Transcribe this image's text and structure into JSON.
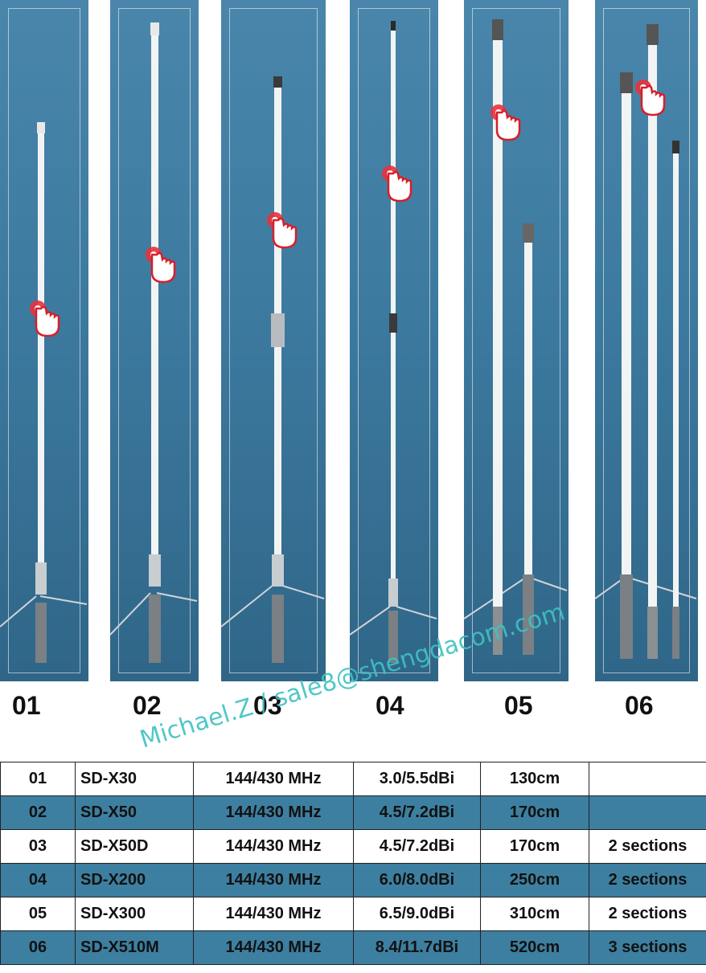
{
  "products": [
    {
      "no": "01",
      "model": "SD-X30",
      "freq": "144/430 MHz",
      "gain": "3.0/5.5dBi",
      "length": "130cm",
      "sections": ""
    },
    {
      "no": "02",
      "model": "SD-X50",
      "freq": "144/430 MHz",
      "gain": "4.5/7.2dBi",
      "length": "170cm",
      "sections": ""
    },
    {
      "no": "03",
      "model": "SD-X50D",
      "freq": "144/430 MHz",
      "gain": "4.5/7.2dBi",
      "length": "170cm",
      "sections": "2 sections"
    },
    {
      "no": "04",
      "model": "SD-X200",
      "freq": "144/430 MHz",
      "gain": "6.0/8.0dBi",
      "length": "250cm",
      "sections": "2 sections"
    },
    {
      "no": "05",
      "model": "SD-X300",
      "freq": "144/430 MHz",
      "gain": "6.5/9.0dBi",
      "length": "310cm",
      "sections": "2 sections"
    },
    {
      "no": "06",
      "model": "SD-X510M",
      "freq": "144/430 MHz",
      "gain": "8.4/11.7dBi",
      "length": "520cm",
      "sections": "3 sections"
    }
  ],
  "watermark": "Michael.Z / sale8@shengdacom.com",
  "colors": {
    "panel": "#3d7aa0",
    "row_alt": "#3d7fa0",
    "pointer": "#e8323c"
  }
}
